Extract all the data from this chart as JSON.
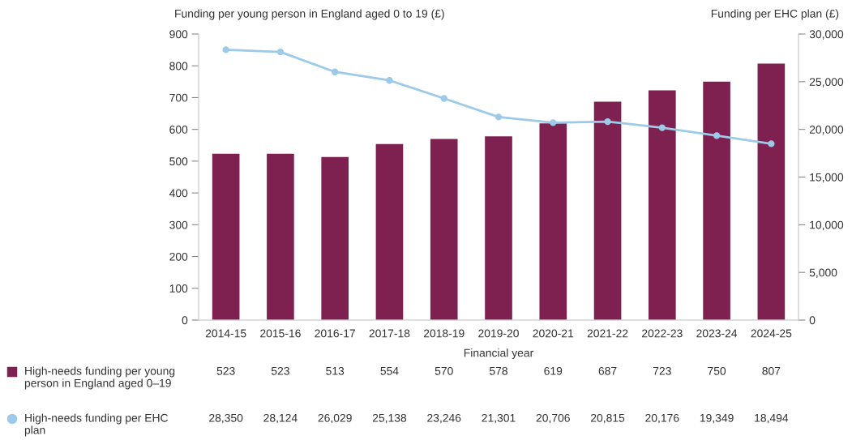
{
  "chart_data": {
    "type": "bar",
    "categories": [
      "2014-15",
      "2015-16",
      "2016-17",
      "2017-18",
      "2018-19",
      "2019-20",
      "2020-21",
      "2021-22",
      "2022-23",
      "2023-24",
      "2024-25"
    ],
    "xlabel": "Financial year",
    "ylabel": "Funding per young person in England aged 0 to 19 (£)",
    "y2label": "Funding per EHC plan (£)",
    "series": [
      {
        "name": "High-needs funding per young person in England aged 0–19",
        "color": "#7e2150",
        "values": [
          523,
          523,
          513,
          554,
          570,
          578,
          619,
          687,
          723,
          750,
          807
        ],
        "value_labels": [
          "523",
          "523",
          "513",
          "554",
          "570",
          "578",
          "619",
          "687",
          "723",
          "750",
          "807"
        ]
      },
      {
        "name": "High-needs funding per EHC plan",
        "type": "line",
        "axis": "y2",
        "color": "#9ccae8",
        "values": [
          28350,
          28124,
          26029,
          25138,
          23246,
          21301,
          20706,
          20815,
          20176,
          19349,
          18494
        ],
        "value_labels": [
          "28,350",
          "28,124",
          "26,029",
          "25,138",
          "23,246",
          "21,301",
          "20,706",
          "20,815",
          "20,176",
          "19,349",
          "18,494"
        ]
      }
    ],
    "ylim": [
      0,
      900
    ],
    "yticks": [
      0,
      100,
      200,
      300,
      400,
      500,
      600,
      700,
      800,
      900
    ],
    "y2lim": [
      0,
      30000
    ],
    "y2ticks": [
      0,
      {
        "value": 5000,
        "label": "5,000"
      },
      {
        "value": 10000,
        "label": "10,000"
      },
      {
        "value": 15000,
        "label": "15,000"
      },
      {
        "value": 20000,
        "label": "20,000"
      },
      {
        "value": 25000,
        "label": "25,000"
      },
      {
        "value": 30000,
        "label": "30,000"
      }
    ],
    "marker": "circle",
    "line_style": "solid",
    "grid": false,
    "legend": "bottom"
  }
}
